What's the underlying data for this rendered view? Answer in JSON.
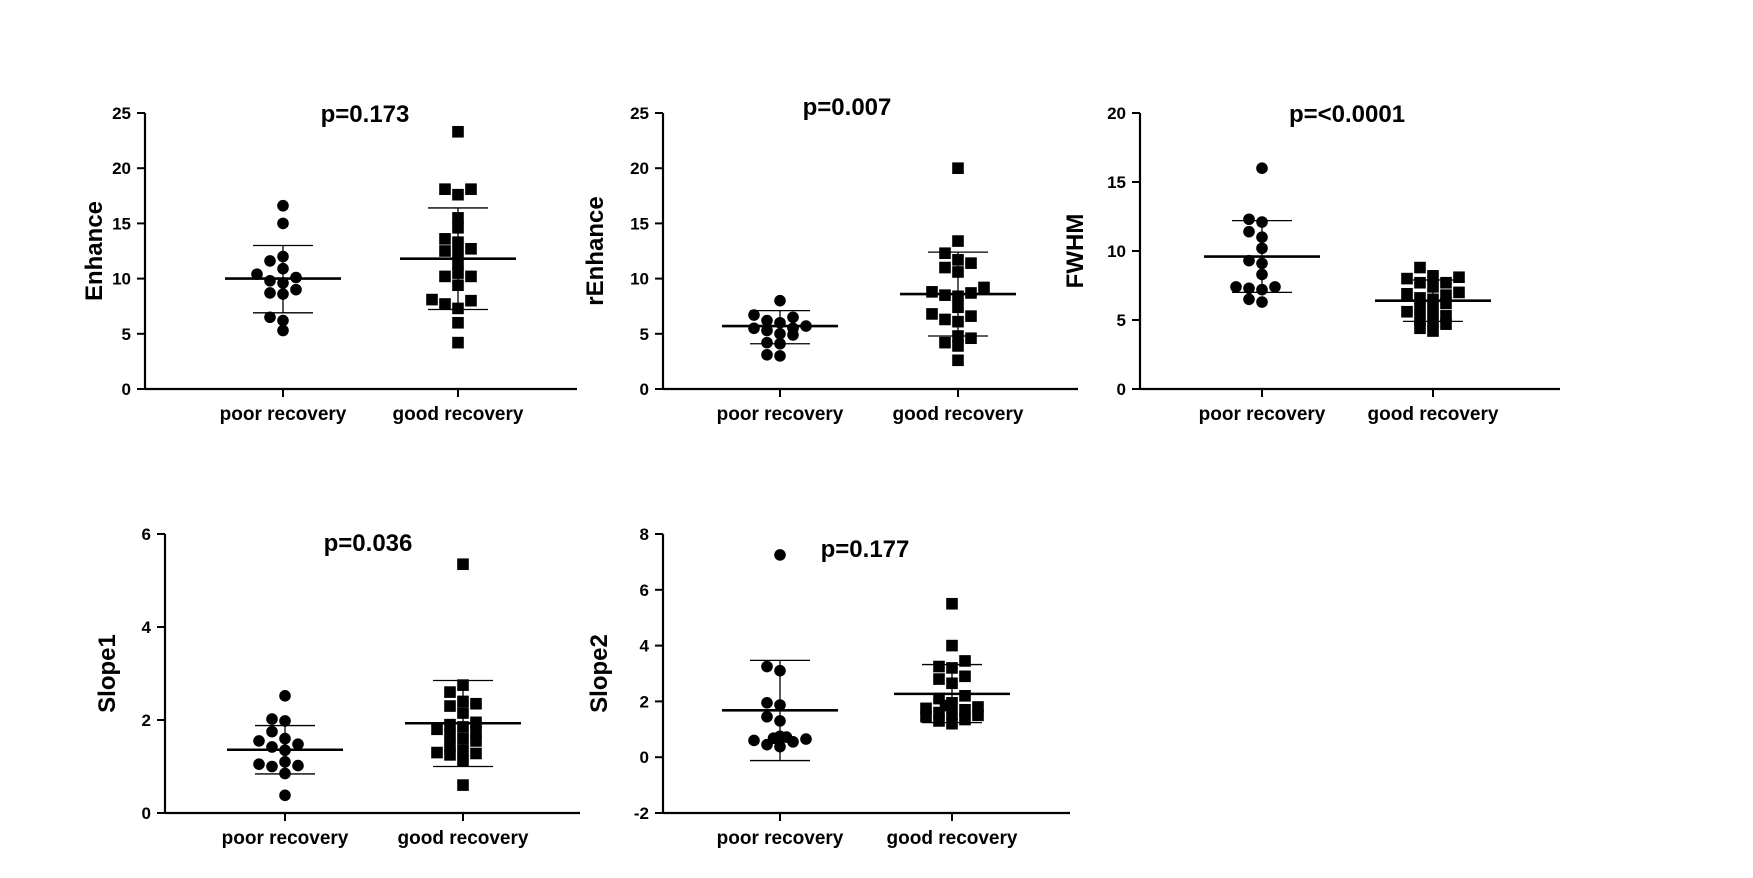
{
  "chart_data": [
    {
      "type": "scatter",
      "title": "p=0.173",
      "ylabel": "Enhance",
      "xlabel": "",
      "ylim": [
        0,
        25
      ],
      "yticks": [
        0,
        5,
        10,
        15,
        20,
        25
      ],
      "categories": [
        "poor recovery",
        "good recovery"
      ],
      "series": [
        {
          "name": "poor recovery",
          "marker": "circle",
          "mean": 10.0,
          "sd_low": 6.9,
          "sd_high": 13.0,
          "values": [
            16.6,
            15.0,
            12.0,
            11.6,
            10.9,
            10.4,
            10.1,
            9.8,
            9.6,
            9.0,
            8.7,
            8.6,
            6.5,
            6.2,
            5.3
          ]
        },
        {
          "name": "good recovery",
          "marker": "square",
          "mean": 11.8,
          "sd_low": 7.2,
          "sd_high": 16.4,
          "values": [
            23.3,
            18.1,
            18.1,
            17.6,
            15.5,
            14.6,
            13.6,
            13.3,
            12.7,
            12.5,
            12.3,
            11.4,
            10.5,
            10.2,
            10.2,
            9.4,
            8.1,
            8.0,
            7.7,
            7.3,
            6.0,
            4.2
          ]
        }
      ]
    },
    {
      "type": "scatter",
      "title": "p=0.007",
      "ylabel": "rEnhance",
      "xlabel": "",
      "ylim": [
        0,
        25
      ],
      "yticks": [
        0,
        5,
        10,
        15,
        20,
        25
      ],
      "categories": [
        "poor recovery",
        "good recovery"
      ],
      "series": [
        {
          "name": "poor recovery",
          "marker": "circle",
          "mean": 5.7,
          "sd_low": 4.1,
          "sd_high": 7.1,
          "values": [
            8.0,
            6.7,
            6.5,
            6.2,
            6.0,
            5.7,
            5.5,
            5.5,
            5.3,
            5.0,
            4.9,
            4.2,
            4.1,
            3.1,
            3.0
          ]
        },
        {
          "name": "good recovery",
          "marker": "square",
          "mean": 8.6,
          "sd_low": 4.8,
          "sd_high": 12.4,
          "values": [
            20.0,
            13.4,
            12.3,
            11.7,
            11.4,
            11.0,
            10.6,
            9.2,
            8.8,
            8.7,
            8.5,
            8.4,
            7.4,
            6.8,
            6.6,
            6.3,
            6.1,
            4.8,
            4.6,
            4.2,
            3.9,
            2.6
          ]
        }
      ]
    },
    {
      "type": "scatter",
      "title": "p=<0.0001",
      "ylabel": "FWHM",
      "xlabel": "",
      "ylim": [
        0,
        20
      ],
      "yticks": [
        0,
        5,
        10,
        15,
        20
      ],
      "categories": [
        "poor recovery",
        "good recovery"
      ],
      "series": [
        {
          "name": "poor recovery",
          "marker": "circle",
          "mean": 9.6,
          "sd_low": 7.0,
          "sd_high": 12.2,
          "values": [
            16.0,
            12.3,
            12.1,
            11.4,
            11.0,
            10.2,
            9.3,
            9.1,
            8.3,
            7.4,
            7.4,
            7.3,
            7.2,
            6.5,
            6.3
          ]
        },
        {
          "name": "good recovery",
          "marker": "square",
          "mean": 6.4,
          "sd_low": 4.9,
          "sd_high": 7.9,
          "values": [
            8.8,
            8.2,
            8.1,
            8.0,
            7.7,
            7.7,
            7.4,
            7.0,
            6.9,
            6.8,
            6.6,
            6.5,
            6.2,
            5.8,
            5.7,
            5.6,
            5.3,
            5.0,
            4.9,
            4.7,
            4.4,
            4.2
          ]
        }
      ]
    },
    {
      "type": "scatter",
      "title": "p=0.036",
      "ylabel": "Slope1",
      "xlabel": "",
      "ylim": [
        0,
        6
      ],
      "yticks": [
        0,
        2,
        4,
        6
      ],
      "categories": [
        "poor recovery",
        "good recovery"
      ],
      "series": [
        {
          "name": "poor recovery",
          "marker": "circle",
          "mean": 1.36,
          "sd_low": 0.84,
          "sd_high": 1.88,
          "values": [
            2.52,
            2.02,
            1.98,
            1.75,
            1.6,
            1.55,
            1.48,
            1.42,
            1.35,
            1.1,
            1.05,
            1.02,
            1.0,
            0.85,
            0.38
          ]
        },
        {
          "name": "good recovery",
          "marker": "square",
          "mean": 1.93,
          "sd_low": 1.0,
          "sd_high": 2.85,
          "values": [
            5.35,
            2.75,
            2.6,
            2.4,
            2.35,
            2.3,
            2.15,
            1.95,
            1.9,
            1.85,
            1.8,
            1.75,
            1.68,
            1.6,
            1.55,
            1.45,
            1.35,
            1.3,
            1.28,
            1.25,
            1.12,
            0.6
          ]
        }
      ]
    },
    {
      "type": "scatter",
      "title": "p=0.177",
      "ylabel": "Slope2",
      "xlabel": "",
      "ylim": [
        -2,
        8
      ],
      "yticks": [
        -2,
        0,
        2,
        4,
        6,
        8
      ],
      "categories": [
        "poor recovery",
        "good recovery"
      ],
      "series": [
        {
          "name": "poor recovery",
          "marker": "circle",
          "mean": 1.68,
          "sd_low": -0.12,
          "sd_high": 3.47,
          "values": [
            7.25,
            3.25,
            3.1,
            1.95,
            1.87,
            1.45,
            1.3,
            0.75,
            0.72,
            0.68,
            0.65,
            0.6,
            0.55,
            0.45,
            0.38
          ]
        },
        {
          "name": "good recovery",
          "marker": "square",
          "mean": 2.27,
          "sd_low": 1.24,
          "sd_high": 3.32,
          "values": [
            5.5,
            4.0,
            3.45,
            3.25,
            3.2,
            2.9,
            2.8,
            2.65,
            2.2,
            2.1,
            1.95,
            1.85,
            1.8,
            1.75,
            1.7,
            1.6,
            1.55,
            1.5,
            1.45,
            1.35,
            1.3,
            1.2
          ]
        }
      ]
    }
  ]
}
